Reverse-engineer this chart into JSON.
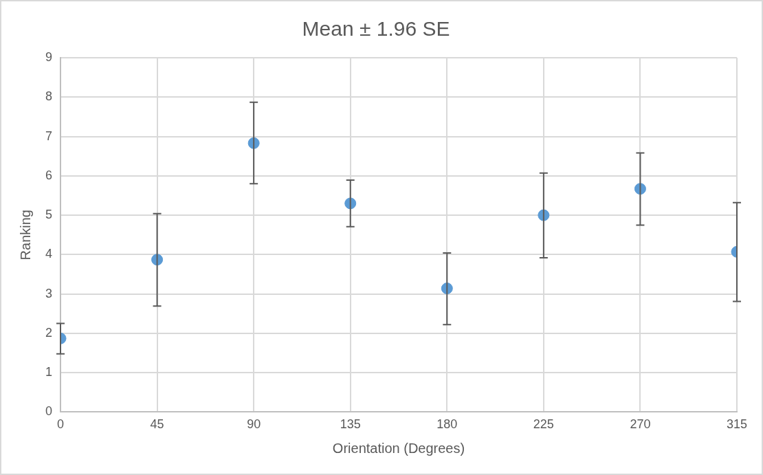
{
  "chart_data": {
    "type": "scatter",
    "title": "Mean ± 1.96 SE",
    "xlabel": "Orientation (Degrees)",
    "ylabel": "Ranking",
    "x": [
      0,
      45,
      90,
      135,
      180,
      225,
      270,
      315
    ],
    "values": [
      1.87,
      3.87,
      6.83,
      5.3,
      3.14,
      5.0,
      5.67,
      4.07
    ],
    "errors": [
      [
        1.48,
        2.25
      ],
      [
        2.69,
        5.04
      ],
      [
        5.8,
        7.87
      ],
      [
        4.71,
        5.89
      ],
      [
        2.22,
        4.04
      ],
      [
        3.92,
        6.07
      ],
      [
        4.75,
        6.58
      ],
      [
        2.81,
        5.32
      ]
    ],
    "color": "#5b9bd5",
    "xlim": [
      0,
      315
    ],
    "xticks": [
      0,
      45,
      90,
      135,
      180,
      225,
      270,
      315
    ],
    "ylim": [
      0,
      9
    ],
    "yticks": [
      0,
      1,
      2,
      3,
      4,
      5,
      6,
      7,
      8,
      9
    ],
    "grid": true,
    "legend": false,
    "marker": "circle"
  }
}
